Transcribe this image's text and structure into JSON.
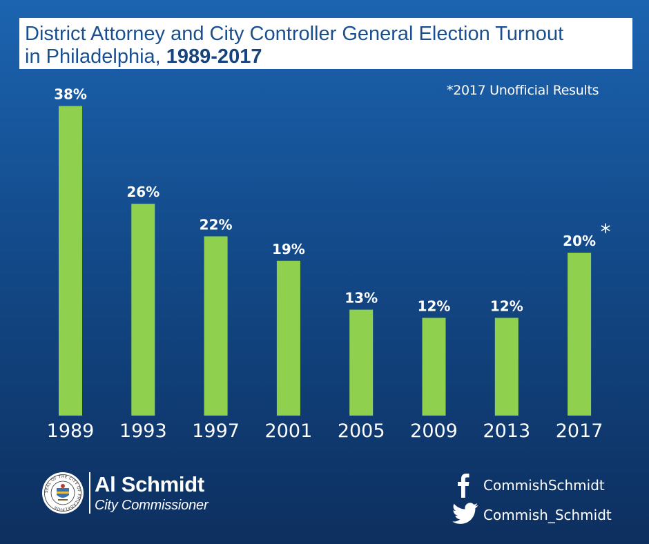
{
  "title": {
    "line1": "District Attorney and City Controller General Election Turnout",
    "line2_plain": "in Philadelphia, ",
    "line2_bold": "1989-2017"
  },
  "footnote": "*2017 Unofficial Results",
  "chart_data": {
    "type": "bar",
    "title": "District Attorney and City Controller General Election Turnout in Philadelphia, 1989-2017",
    "xlabel": "",
    "ylabel": "",
    "ylim": [
      0,
      40
    ],
    "categories": [
      "1989",
      "1993",
      "1997",
      "2001",
      "2005",
      "2009",
      "2013",
      "2017"
    ],
    "values": [
      38,
      26,
      22,
      19,
      13,
      12,
      12,
      20
    ],
    "data_labels": [
      "38%",
      "26%",
      "22%",
      "19%",
      "13%",
      "12%",
      "12%",
      "20%"
    ],
    "annotated_index": 7,
    "annotation": "*",
    "bar_color": "#8fd14f",
    "grid": false
  },
  "brand": {
    "name": "Al Schmidt",
    "role": "City Commissioner",
    "seal_text": "SEAL OF THE CITY OF PHILADELPHIA"
  },
  "social": {
    "facebook": {
      "icon": "facebook-icon",
      "handle": "CommishSchmidt"
    },
    "twitter": {
      "icon": "twitter-icon",
      "handle": "Commish_Schmidt"
    }
  },
  "colors": {
    "background_top": "#1c64b0",
    "background_bottom": "#0d2f5f",
    "title_text": "#1a4f8f",
    "bar": "#8fd14f"
  }
}
